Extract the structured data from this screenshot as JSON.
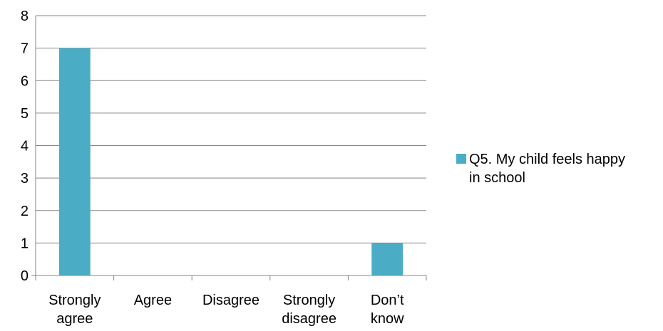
{
  "chart_data": {
    "type": "bar",
    "categories": [
      [
        "Strongly",
        "agree"
      ],
      [
        "Agree"
      ],
      [
        "Disagree"
      ],
      [
        "Strongly",
        "disagree"
      ],
      [
        "Don’t",
        "know"
      ]
    ],
    "series": [
      {
        "name": "Q5. My child feels happy in school",
        "legend_lines": [
          "Q5. My child feels happy",
          "in school"
        ],
        "values": [
          7,
          0,
          0,
          0,
          1
        ],
        "color": "#4bacc6"
      }
    ],
    "ylim": [
      0,
      8
    ],
    "yticks": [
      0,
      1,
      2,
      3,
      4,
      5,
      6,
      7,
      8
    ],
    "grid": true,
    "legend": "right"
  }
}
